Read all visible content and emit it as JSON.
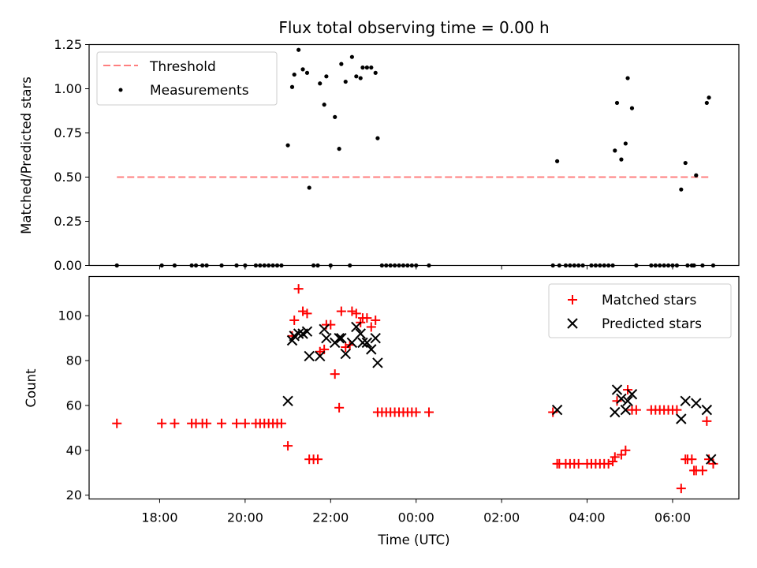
{
  "chart_data": {
    "type": "scatter",
    "title": "Flux total observing time = 0.00 h",
    "shared_xlabel": "Time (UTC)",
    "x_ticks": [
      "18:00",
      "20:00",
      "22:00",
      "00:00",
      "02:00",
      "04:00",
      "06:00"
    ],
    "x_tick_hours": [
      18,
      20,
      22,
      24,
      26,
      28,
      30
    ],
    "xlim_hours": [
      16.35,
      31.55
    ],
    "panels": [
      {
        "ylabel": "Matched/Predicted stars",
        "ylim": [
          0,
          1.25
        ],
        "y_ticks": [
          "0.00",
          "0.25",
          "0.50",
          "0.75",
          "1.00",
          "1.25"
        ],
        "y_tick_values": [
          0,
          0.25,
          0.5,
          0.75,
          1.0,
          1.25
        ],
        "legend_position": "top-left",
        "series": [
          {
            "name": "Threshold",
            "kind": "dashed-line",
            "color": "#ff7f7f",
            "x_hours": [
              17.0,
              30.9
            ],
            "y": [
              0.5,
              0.5
            ]
          },
          {
            "name": "Measurements",
            "kind": "dot",
            "color": "#000000",
            "points": [
              [
                17.0,
                0
              ],
              [
                18.05,
                0
              ],
              [
                18.35,
                0
              ],
              [
                18.75,
                0
              ],
              [
                18.85,
                0
              ],
              [
                19.0,
                0
              ],
              [
                19.1,
                0
              ],
              [
                19.45,
                0
              ],
              [
                19.8,
                0
              ],
              [
                20.0,
                0
              ],
              [
                20.25,
                0
              ],
              [
                20.35,
                0
              ],
              [
                20.45,
                0
              ],
              [
                20.55,
                0
              ],
              [
                20.65,
                0
              ],
              [
                20.75,
                0
              ],
              [
                20.85,
                0
              ],
              [
                21.0,
                0.68
              ],
              [
                21.1,
                1.01
              ],
              [
                21.15,
                1.08
              ],
              [
                21.25,
                1.22
              ],
              [
                21.35,
                1.11
              ],
              [
                21.45,
                1.09
              ],
              [
                21.5,
                0.44
              ],
              [
                21.6,
                0
              ],
              [
                21.7,
                0
              ],
              [
                21.75,
                1.03
              ],
              [
                21.85,
                0.91
              ],
              [
                21.9,
                1.07
              ],
              [
                22.0,
                0
              ],
              [
                22.1,
                0.84
              ],
              [
                22.2,
                0.66
              ],
              [
                22.25,
                1.14
              ],
              [
                22.35,
                1.04
              ],
              [
                22.45,
                0
              ],
              [
                22.5,
                1.18
              ],
              [
                22.6,
                1.07
              ],
              [
                22.7,
                1.06
              ],
              [
                22.75,
                1.12
              ],
              [
                22.85,
                1.12
              ],
              [
                22.95,
                1.12
              ],
              [
                23.05,
                1.09
              ],
              [
                23.1,
                0.72
              ],
              [
                23.2,
                0
              ],
              [
                23.3,
                0
              ],
              [
                23.4,
                0
              ],
              [
                23.5,
                0
              ],
              [
                23.6,
                0
              ],
              [
                23.7,
                0
              ],
              [
                23.8,
                0
              ],
              [
                23.9,
                0
              ],
              [
                24.0,
                0
              ],
              [
                24.3,
                0
              ],
              [
                27.2,
                0
              ],
              [
                27.3,
                0.59
              ],
              [
                27.35,
                0
              ],
              [
                27.5,
                0
              ],
              [
                27.6,
                0
              ],
              [
                27.7,
                0
              ],
              [
                27.8,
                0
              ],
              [
                27.9,
                0
              ],
              [
                28.1,
                0
              ],
              [
                28.2,
                0
              ],
              [
                28.3,
                0
              ],
              [
                28.4,
                0
              ],
              [
                28.5,
                0
              ],
              [
                28.6,
                0
              ],
              [
                28.65,
                0.65
              ],
              [
                28.7,
                0.92
              ],
              [
                28.8,
                0.6
              ],
              [
                28.9,
                0.69
              ],
              [
                28.95,
                1.06
              ],
              [
                29.05,
                0.89
              ],
              [
                29.15,
                0
              ],
              [
                29.5,
                0
              ],
              [
                29.6,
                0
              ],
              [
                29.7,
                0
              ],
              [
                29.8,
                0
              ],
              [
                29.9,
                0
              ],
              [
                30.0,
                0
              ],
              [
                30.1,
                0
              ],
              [
                30.2,
                0.43
              ],
              [
                30.3,
                0.58
              ],
              [
                30.35,
                0
              ],
              [
                30.45,
                0
              ],
              [
                30.5,
                0
              ],
              [
                30.55,
                0.51
              ],
              [
                30.7,
                0
              ],
              [
                30.8,
                0.92
              ],
              [
                30.85,
                0.95
              ],
              [
                30.95,
                0
              ]
            ]
          }
        ]
      },
      {
        "ylabel": "Count",
        "ylim": [
          18.3,
          117.5
        ],
        "y_ticks": [
          "20",
          "40",
          "60",
          "80",
          "100"
        ],
        "y_tick_values": [
          20,
          40,
          60,
          80,
          100
        ],
        "legend_position": "top-right",
        "series": [
          {
            "name": "Matched stars",
            "kind": "plus",
            "color": "#ff0000",
            "points": [
              [
                17.0,
                52
              ],
              [
                18.05,
                52
              ],
              [
                18.35,
                52
              ],
              [
                18.75,
                52
              ],
              [
                18.85,
                52
              ],
              [
                19.0,
                52
              ],
              [
                19.1,
                52
              ],
              [
                19.45,
                52
              ],
              [
                19.8,
                52
              ],
              [
                20.0,
                52
              ],
              [
                20.25,
                52
              ],
              [
                20.35,
                52
              ],
              [
                20.45,
                52
              ],
              [
                20.55,
                52
              ],
              [
                20.65,
                52
              ],
              [
                20.75,
                52
              ],
              [
                20.85,
                52
              ],
              [
                21.0,
                42
              ],
              [
                21.1,
                91
              ],
              [
                21.15,
                98
              ],
              [
                21.25,
                112
              ],
              [
                21.35,
                102
              ],
              [
                21.45,
                101
              ],
              [
                21.5,
                36
              ],
              [
                21.6,
                36
              ],
              [
                21.7,
                36
              ],
              [
                21.75,
                84
              ],
              [
                21.85,
                85
              ],
              [
                21.9,
                96
              ],
              [
                22.0,
                96
              ],
              [
                22.1,
                74
              ],
              [
                22.2,
                59
              ],
              [
                22.25,
                102
              ],
              [
                22.35,
                86
              ],
              [
                22.45,
                87
              ],
              [
                22.5,
                102
              ],
              [
                22.6,
                101
              ],
              [
                22.7,
                97
              ],
              [
                22.75,
                99
              ],
              [
                22.85,
                99
              ],
              [
                22.95,
                95
              ],
              [
                23.05,
                98
              ],
              [
                23.1,
                57
              ],
              [
                23.2,
                57
              ],
              [
                23.3,
                57
              ],
              [
                23.4,
                57
              ],
              [
                23.5,
                57
              ],
              [
                23.6,
                57
              ],
              [
                23.7,
                57
              ],
              [
                23.8,
                57
              ],
              [
                23.9,
                57
              ],
              [
                24.0,
                57
              ],
              [
                24.3,
                57
              ],
              [
                27.2,
                57
              ],
              [
                27.3,
                34
              ],
              [
                27.35,
                34
              ],
              [
                27.5,
                34
              ],
              [
                27.6,
                34
              ],
              [
                27.7,
                34
              ],
              [
                27.8,
                34
              ],
              [
                28.0,
                34
              ],
              [
                28.1,
                34
              ],
              [
                28.2,
                34
              ],
              [
                28.3,
                34
              ],
              [
                28.4,
                34
              ],
              [
                28.5,
                34
              ],
              [
                28.6,
                35
              ],
              [
                28.65,
                37
              ],
              [
                28.7,
                62
              ],
              [
                28.8,
                38
              ],
              [
                28.9,
                40
              ],
              [
                28.95,
                67
              ],
              [
                29.05,
                58
              ],
              [
                29.15,
                58
              ],
              [
                29.5,
                58
              ],
              [
                29.6,
                58
              ],
              [
                29.7,
                58
              ],
              [
                29.8,
                58
              ],
              [
                29.9,
                58
              ],
              [
                30.0,
                58
              ],
              [
                30.1,
                58
              ],
              [
                30.2,
                23
              ],
              [
                30.3,
                36
              ],
              [
                30.35,
                36
              ],
              [
                30.45,
                36
              ],
              [
                30.5,
                31
              ],
              [
                30.55,
                31
              ],
              [
                30.7,
                31
              ],
              [
                30.8,
                53
              ],
              [
                30.85,
                36
              ],
              [
                30.95,
                34
              ]
            ]
          },
          {
            "name": "Predicted stars",
            "kind": "x",
            "color": "#000000",
            "points": [
              [
                21.0,
                62
              ],
              [
                21.1,
                89
              ],
              [
                21.15,
                91
              ],
              [
                21.25,
                92
              ],
              [
                21.35,
                92
              ],
              [
                21.45,
                93
              ],
              [
                21.5,
                82
              ],
              [
                21.75,
                82
              ],
              [
                21.85,
                94
              ],
              [
                21.9,
                90
              ],
              [
                22.1,
                88
              ],
              [
                22.2,
                90
              ],
              [
                22.25,
                90
              ],
              [
                22.35,
                83
              ],
              [
                22.5,
                88
              ],
              [
                22.6,
                95
              ],
              [
                22.7,
                92
              ],
              [
                22.75,
                88
              ],
              [
                22.85,
                88
              ],
              [
                22.95,
                85
              ],
              [
                23.05,
                90
              ],
              [
                23.1,
                79
              ],
              [
                27.3,
                58
              ],
              [
                28.65,
                57
              ],
              [
                28.7,
                67
              ],
              [
                28.8,
                63
              ],
              [
                28.9,
                58
              ],
              [
                28.95,
                62
              ],
              [
                29.05,
                65
              ],
              [
                30.2,
                54
              ],
              [
                30.3,
                62
              ],
              [
                30.55,
                61
              ],
              [
                30.8,
                58
              ],
              [
                30.9,
                36
              ]
            ]
          }
        ]
      }
    ]
  }
}
